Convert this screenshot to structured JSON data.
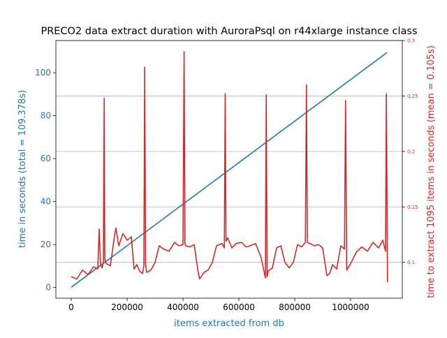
{
  "chart_data": {
    "type": "line",
    "title": "PRECO2 data extract duration with AuroraPsql on r44xlarge instance class",
    "xlabel": "items extracted from db",
    "ylabel_left": "time in seconds (total = 109.378s)",
    "ylabel_right": "time to extract 1095 items in seconds (mean = 0.105s)",
    "xlim": [
      -55000,
      1185000
    ],
    "ylim_left": [
      -5,
      115
    ],
    "ylim_right": [
      0.0677,
      0.3
    ],
    "x_ticks": [
      0,
      200000,
      400000,
      600000,
      800000,
      1000000
    ],
    "x_tick_labels": [
      "0",
      "200000",
      "400000",
      "600000",
      "800000",
      "1000000"
    ],
    "y_left_ticks": [
      0,
      20,
      40,
      60,
      80,
      100
    ],
    "y_left_tick_labels": [
      "0",
      "20",
      "40",
      "60",
      "80",
      "100"
    ],
    "y_right_ticks": [
      0.1,
      0.15,
      0.2,
      0.25,
      0.3
    ],
    "y_right_tick_labels": [
      "0.1",
      "0.15",
      "0.2",
      "0.25",
      "0.3"
    ],
    "grid": "horizontal lines at right-axis ticks",
    "colors": {
      "cumulative": "#1f77b4",
      "per_batch": "#d62728",
      "left_axis_text": "#1f77b4",
      "right_axis_text": "#d62728"
    },
    "series": [
      {
        "axis": "left",
        "color": "#1f77b4",
        "x": [
          0,
          1130000
        ],
        "y": [
          0.1,
          109.378
        ]
      },
      {
        "axis": "right",
        "color": "#d62728",
        "x": [
          0,
          20000,
          40000,
          60000,
          80000,
          95000,
          100000,
          105000,
          110000,
          115000,
          118000,
          120000,
          125000,
          140000,
          155000,
          160000,
          170000,
          185000,
          200000,
          215000,
          225000,
          235000,
          245000,
          255000,
          260000,
          263000,
          266000,
          270000,
          285000,
          300000,
          315000,
          330000,
          350000,
          370000,
          385000,
          400000,
          404000,
          407000,
          410000,
          425000,
          440000,
          455000,
          460000,
          475000,
          490000,
          505000,
          520000,
          540000,
          548000,
          551000,
          554000,
          560000,
          575000,
          590000,
          610000,
          625000,
          640000,
          660000,
          680000,
          695000,
          698000,
          701000,
          705000,
          720000,
          735000,
          750000,
          765000,
          780000,
          795000,
          810000,
          825000,
          838000,
          842000,
          845000,
          855000,
          870000,
          885000,
          900000,
          915000,
          925000,
          935000,
          950000,
          965000,
          978000,
          982000,
          986000,
          1000000,
          1020000,
          1040000,
          1060000,
          1080000,
          1100000,
          1115000,
          1125000,
          1128000,
          1132000
        ],
        "y": [
          0.087,
          0.085,
          0.093,
          0.089,
          0.096,
          0.094,
          0.13,
          0.098,
          0.095,
          0.1,
          0.248,
          0.103,
          0.099,
          0.097,
          0.124,
          0.131,
          0.115,
          0.126,
          0.12,
          0.123,
          0.094,
          0.098,
          0.092,
          0.09,
          0.097,
          0.276,
          0.099,
          0.091,
          0.093,
          0.1,
          0.115,
          0.112,
          0.11,
          0.118,
          0.115,
          0.116,
          0.29,
          0.117,
          0.115,
          0.114,
          0.116,
          0.09,
          0.085,
          0.091,
          0.093,
          0.1,
          0.115,
          0.117,
          0.113,
          0.252,
          0.119,
          0.122,
          0.113,
          0.117,
          0.118,
          0.114,
          0.115,
          0.117,
          0.104,
          0.086,
          0.251,
          0.087,
          0.092,
          0.095,
          0.113,
          0.115,
          0.1,
          0.095,
          0.1,
          0.116,
          0.114,
          0.118,
          0.26,
          0.118,
          0.117,
          0.115,
          0.116,
          0.113,
          0.088,
          0.09,
          0.098,
          0.094,
          0.115,
          0.112,
          0.246,
          0.093,
          0.099,
          0.109,
          0.114,
          0.11,
          0.118,
          0.113,
          0.12,
          0.11,
          0.252,
          0.082
        ]
      }
    ]
  }
}
